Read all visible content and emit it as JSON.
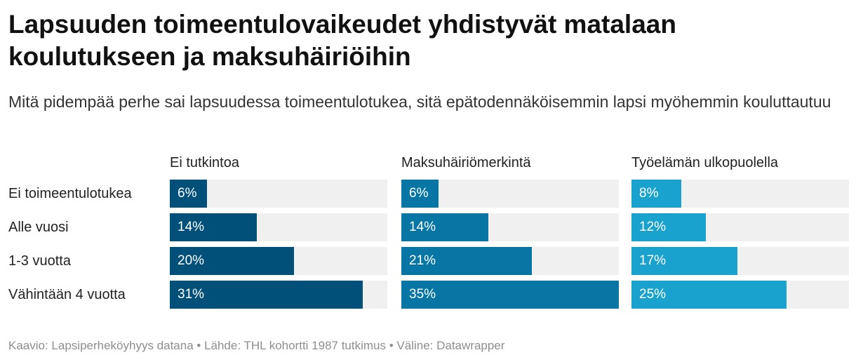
{
  "title": "Lapsuuden toimeentulovaikeudet yhdistyvät matalaan koulutukseen ja maksuhäiriöihin",
  "subtitle": "Mitä pidempää perhe sai lapsuudessa toimeentulotukea, sitä epätodennäköisemmin lapsi myöhemmin kouluttautuu",
  "footer": "Kaavio: Lapsiperheköyhyys datana • Lähde: THL kohortti 1987 tutkimus • Väline: Datawrapper",
  "chart_data": {
    "type": "bar",
    "orientation": "horizontal",
    "value_unit": "%",
    "xlim": [
      0,
      35
    ],
    "categories": [
      "Ei toimeentulotukea",
      "Alle vuosi",
      "1-3 vuotta",
      "Vähintään 4 vuotta"
    ],
    "series": [
      {
        "name": "Ei tutkintoa",
        "values": [
          6,
          14,
          20,
          31
        ],
        "labels": [
          "6%",
          "14%",
          "20%",
          "31%"
        ],
        "color": "#01507a"
      },
      {
        "name": "Maksuhäiriömerkintä",
        "values": [
          6,
          14,
          21,
          35
        ],
        "labels": [
          "6%",
          "14%",
          "21%",
          "35%"
        ],
        "color": "#0776a4"
      },
      {
        "name": "Työelämän ulkopuolella",
        "values": [
          8,
          12,
          17,
          25
        ],
        "labels": [
          "8%",
          "12%",
          "17%",
          "25%"
        ],
        "color": "#1aa2cf"
      }
    ],
    "track_color": "#f0f0f0"
  }
}
